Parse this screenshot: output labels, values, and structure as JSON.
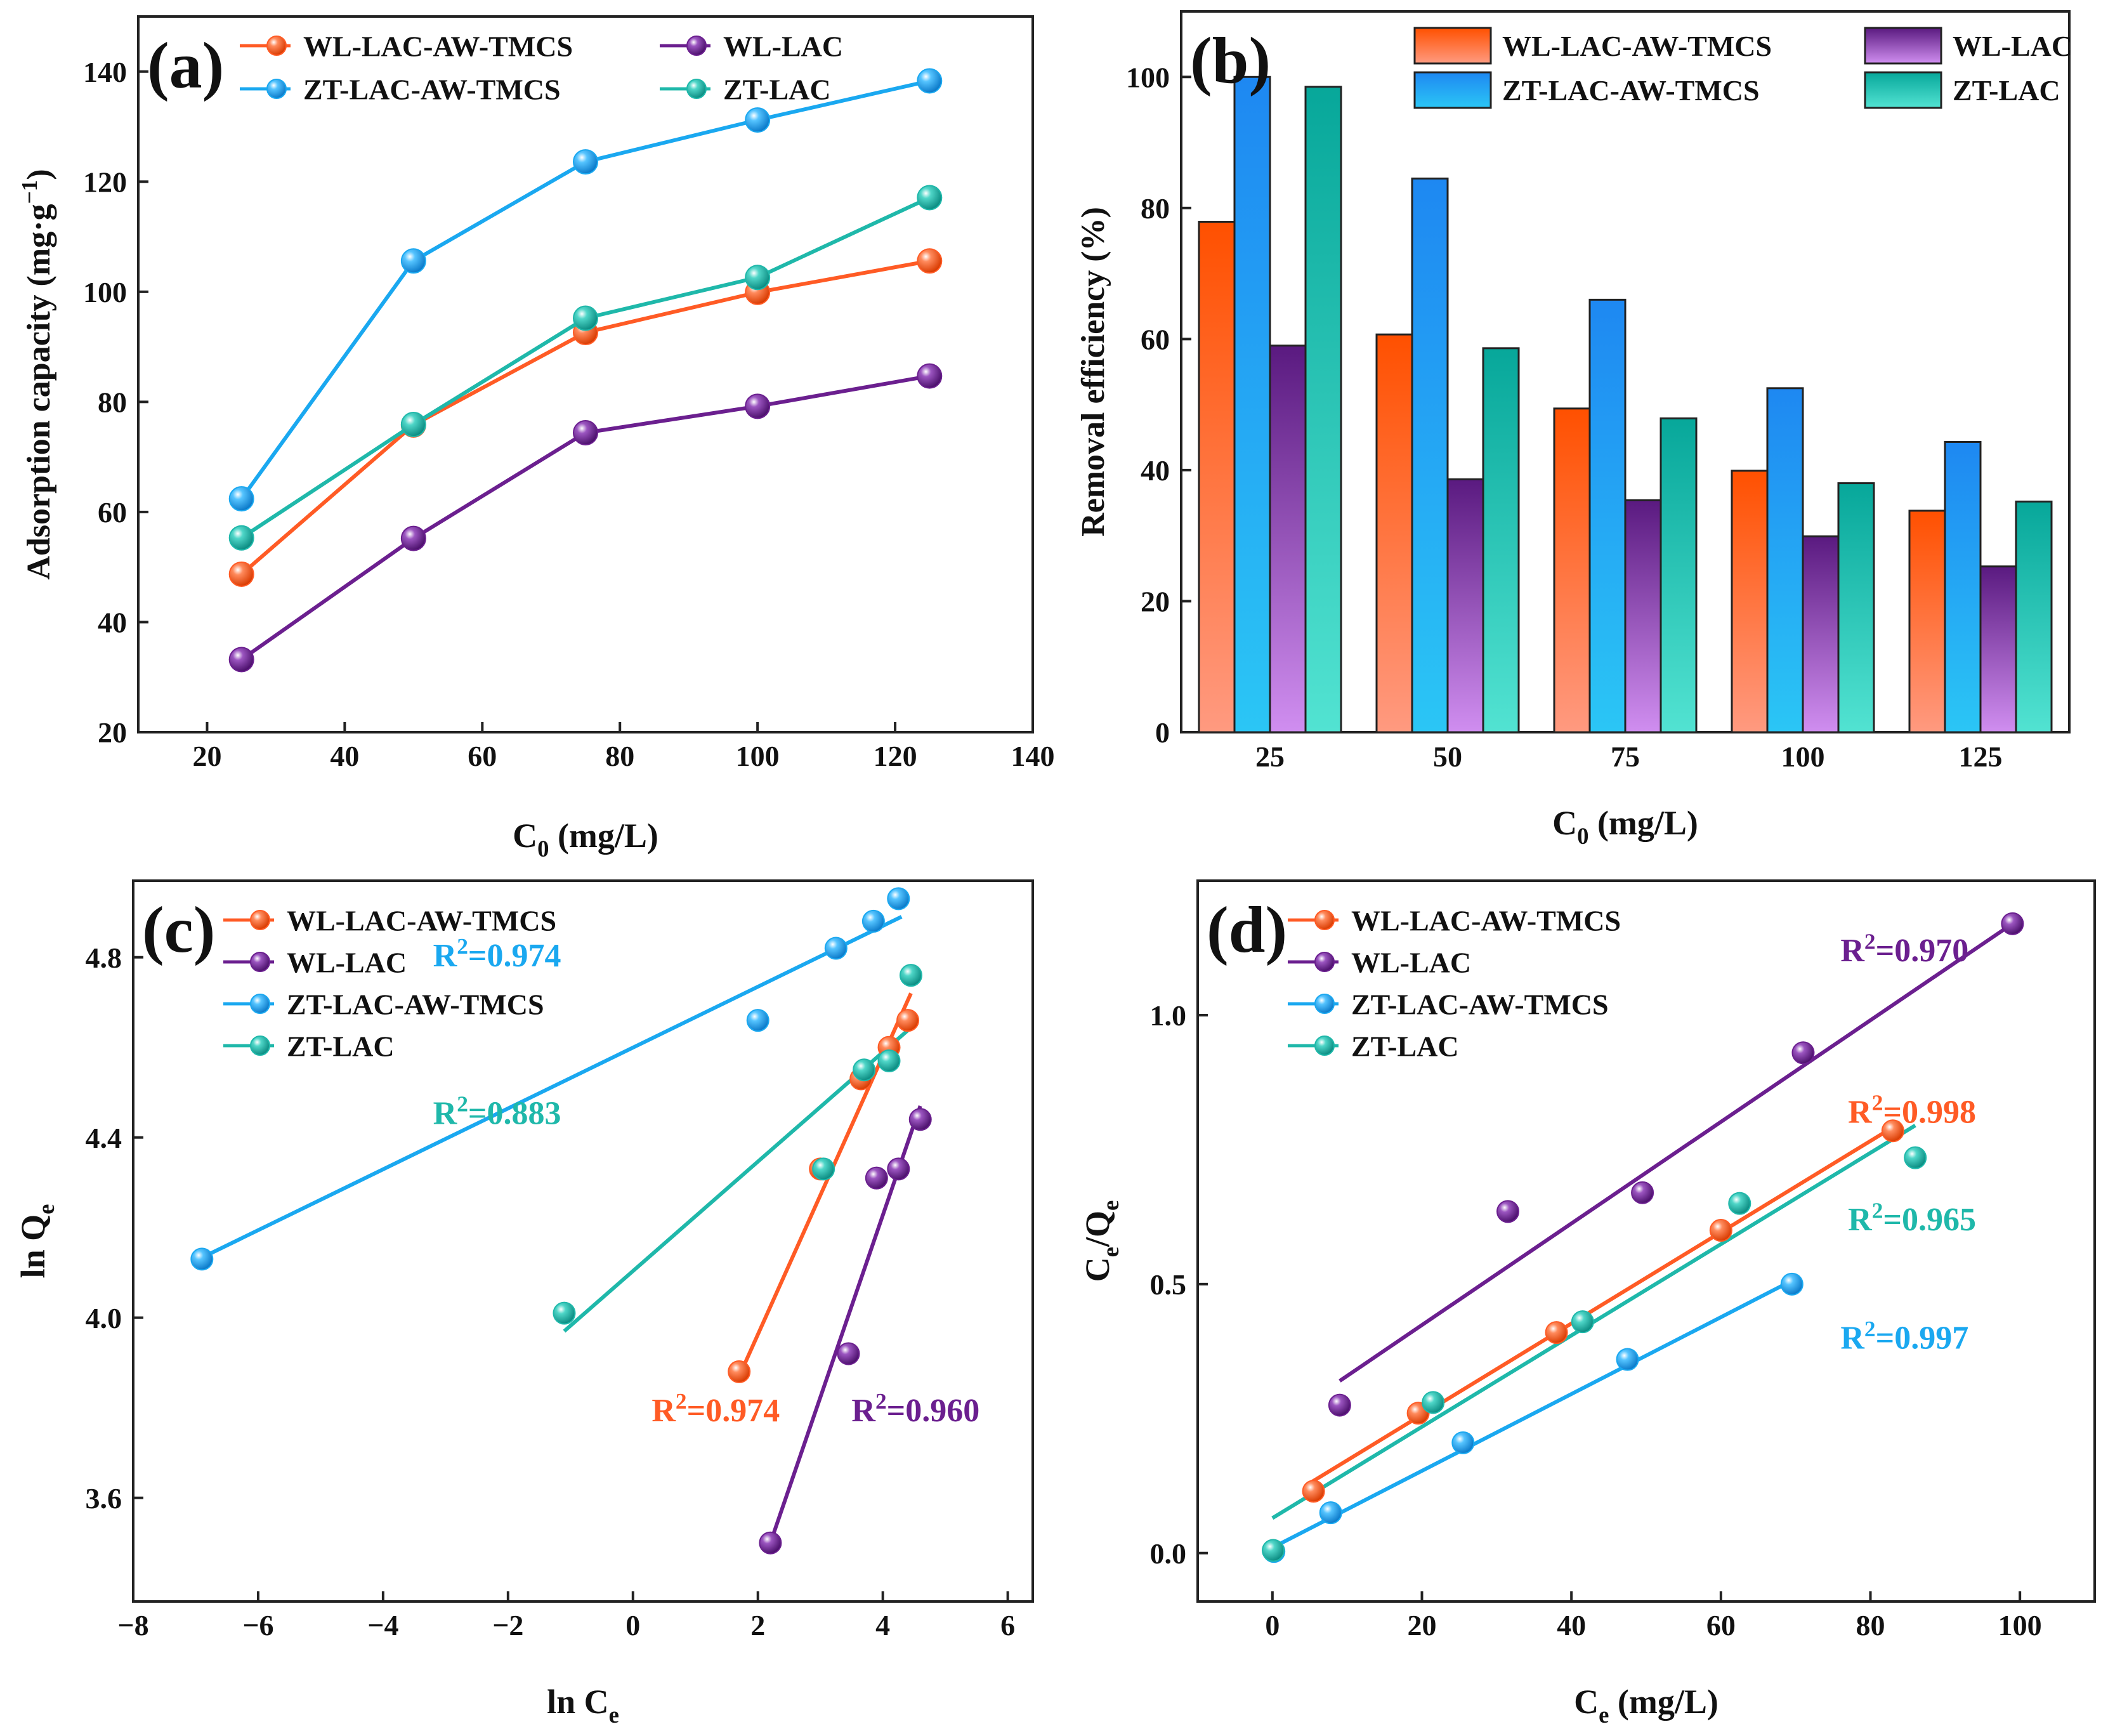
{
  "colors": {
    "wl_aw": "#ff5b25",
    "wl_lac": "#6b1f8f",
    "zt_aw": "#1aa8f0",
    "zt_lac": "#1fb8aa"
  },
  "chart_data": [
    {
      "id": "a",
      "type": "line",
      "panel_label": "(a)",
      "xlabel": "C",
      "xlabel_sub": "0",
      "xlabel_rest": " (mg/L)",
      "ylabel": "Adsorption capacity (mg·g",
      "ylabel_sup": "−1",
      "ylabel_end": ")",
      "xlim": [
        10,
        140
      ],
      "ylim": [
        20,
        150
      ],
      "xticks": [
        20,
        40,
        60,
        80,
        100,
        120,
        140
      ],
      "yticks": [
        20,
        40,
        60,
        80,
        100,
        120,
        140
      ],
      "x": [
        25,
        50,
        75,
        100,
        125
      ],
      "legend": [
        "WL-LAC-AW-TMCS",
        "WL-LAC",
        "ZT-LAC-AW-TMCS",
        "ZT-LAC"
      ],
      "series": [
        {
          "name": "WL-LAC-AW-TMCS",
          "color": "wl_aw",
          "values": [
            48.7,
            75.8,
            92.6,
            99.9,
            105.6
          ]
        },
        {
          "name": "WL-LAC",
          "color": "wl_lac",
          "values": [
            33.2,
            55.2,
            74.4,
            79.2,
            84.7
          ]
        },
        {
          "name": "ZT-LAC-AW-TMCS",
          "color": "zt_aw",
          "values": [
            62.4,
            105.6,
            123.6,
            131.2,
            138.3
          ]
        },
        {
          "name": "ZT-LAC",
          "color": "zt_lac",
          "values": [
            55.3,
            75.9,
            95.2,
            102.6,
            117.1
          ]
        }
      ]
    },
    {
      "id": "b",
      "type": "bar",
      "panel_label": "(b)",
      "xlabel": "C",
      "xlabel_sub": "0",
      "xlabel_rest": " (mg/L)",
      "ylabel": "Removal efficiency (%)",
      "ylim": [
        0,
        110
      ],
      "yticks": [
        0,
        20,
        40,
        60,
        80,
        100
      ],
      "categories": [
        "25",
        "50",
        "75",
        "100",
        "125"
      ],
      "legend": [
        "WL-LAC-AW-TMCS",
        "WL-LAC",
        "ZT-LAC-AW-TMCS",
        "ZT-LAC"
      ],
      "series": [
        {
          "name": "WL-LAC-AW-TMCS",
          "color": "wl_aw",
          "values": [
            77.9,
            60.7,
            49.4,
            39.9,
            33.8
          ]
        },
        {
          "name": "ZT-LAC-AW-TMCS",
          "color": "zt_aw",
          "values": [
            100.0,
            84.5,
            66.0,
            52.5,
            44.3
          ]
        },
        {
          "name": "WL-LAC",
          "color": "wl_lac",
          "values": [
            59.0,
            38.6,
            35.4,
            29.9,
            25.3
          ]
        },
        {
          "name": "ZT-LAC",
          "color": "zt_lac",
          "values": [
            98.5,
            58.6,
            47.9,
            38.0,
            35.2
          ]
        }
      ]
    },
    {
      "id": "c",
      "type": "scatter",
      "panel_label": "(c)",
      "xlabel": "ln C",
      "xlabel_sub": "e",
      "xlabel_rest": "",
      "ylabel": "ln Q",
      "ylabel_sub": "e",
      "xlim": [
        -8,
        6.4
      ],
      "ylim": [
        3.37,
        4.97
      ],
      "xticks": [
        -8,
        -6,
        -4,
        -2,
        0,
        2,
        4,
        6
      ],
      "xtick_labels": [
        "−8",
        "−6",
        "−4",
        "−2",
        "0",
        "2",
        "4",
        "6"
      ],
      "yticks": [
        3.6,
        4.0,
        4.4,
        4.8
      ],
      "ytick_labels": [
        "3.6",
        "4.0",
        "4.4",
        "4.8"
      ],
      "legend": [
        "WL-LAC-AW-TMCS",
        "WL-LAC",
        "ZT-LAC-AW-TMCS",
        "ZT-LAC"
      ],
      "series": [
        {
          "name": "WL-LAC-AW-TMCS",
          "color": "wl_aw",
          "points": [
            [
              1.7,
              3.88
            ],
            [
              3.0,
              4.33
            ],
            [
              3.65,
              4.53
            ],
            [
              4.1,
              4.6
            ],
            [
              4.4,
              4.66
            ]
          ],
          "fit": [
            [
              1.7,
              3.87
            ],
            [
              4.45,
              4.72
            ]
          ]
        },
        {
          "name": "WL-LAC",
          "color": "wl_lac",
          "points": [
            [
              2.2,
              3.5
            ],
            [
              3.45,
              3.92
            ],
            [
              3.9,
              4.31
            ],
            [
              4.25,
              4.33
            ],
            [
              4.6,
              4.44
            ]
          ],
          "fit": [
            [
              2.2,
              3.5
            ],
            [
              4.6,
              4.47
            ]
          ]
        },
        {
          "name": "ZT-LAC-AW-TMCS",
          "color": "zt_aw",
          "points": [
            [
              -6.9,
              4.13
            ],
            [
              2.0,
              4.66
            ],
            [
              3.25,
              4.82
            ],
            [
              3.85,
              4.88
            ],
            [
              4.25,
              4.93
            ]
          ],
          "fit": [
            [
              -6.95,
              4.13
            ],
            [
              4.3,
              4.89
            ]
          ]
        },
        {
          "name": "ZT-LAC",
          "color": "zt_lac",
          "points": [
            [
              -1.1,
              4.01
            ],
            [
              3.05,
              4.33
            ],
            [
              3.7,
              4.55
            ],
            [
              4.1,
              4.57
            ],
            [
              4.45,
              4.76
            ]
          ],
          "fit": [
            [
              -1.1,
              3.97
            ],
            [
              4.5,
              4.65
            ]
          ]
        }
      ],
      "annotations": [
        {
          "base": "R",
          "sup": "2",
          "rest": "=0.974",
          "color": "zt_aw",
          "x": -3.2,
          "y": 4.78
        },
        {
          "base": "R",
          "sup": "2",
          "rest": "=0.883",
          "color": "zt_lac",
          "x": -3.2,
          "y": 4.43
        },
        {
          "base": "R",
          "sup": "2",
          "rest": "=0.974",
          "color": "wl_aw",
          "x": 0.3,
          "y": 3.77
        },
        {
          "base": "R",
          "sup": "2",
          "rest": "=0.960",
          "color": "wl_lac",
          "x": 3.5,
          "y": 3.77
        }
      ]
    },
    {
      "id": "d",
      "type": "scatter",
      "panel_label": "(d)",
      "xlabel": "C",
      "xlabel_sub": "e",
      "xlabel_rest": " (mg/L)",
      "ylabel": "C",
      "ylabel_sub": "e",
      "ylabel_mid": "/Q",
      "ylabel_sub2": "e",
      "xlim": [
        -10,
        110
      ],
      "ylim": [
        -0.09,
        1.25
      ],
      "xticks": [
        0,
        20,
        40,
        60,
        80,
        100
      ],
      "xtick_labels": [
        "0",
        "20",
        "40",
        "60",
        "80",
        "100"
      ],
      "yticks": [
        0.0,
        0.5,
        1.0
      ],
      "ytick_labels": [
        "0.0",
        "0.5",
        "1.0"
      ],
      "legend": [
        "WL-LAC-AW-TMCS",
        "WL-LAC",
        "ZT-LAC-AW-TMCS",
        "ZT-LAC"
      ],
      "series": [
        {
          "name": "WL-LAC-AW-TMCS",
          "color": "wl_aw",
          "points": [
            [
              5.5,
              0.115
            ],
            [
              19.5,
              0.26
            ],
            [
              38,
              0.41
            ],
            [
              60,
              0.6
            ],
            [
              83,
              0.785
            ]
          ],
          "fit": [
            [
              5,
              0.13
            ],
            [
              84,
              0.8
            ]
          ]
        },
        {
          "name": "WL-LAC",
          "color": "wl_lac",
          "points": [
            [
              9,
              0.275
            ],
            [
              31.5,
              0.635
            ],
            [
              49.5,
              0.67
            ],
            [
              71,
              0.93
            ],
            [
              99,
              1.17
            ]
          ],
          "fit": [
            [
              9,
              0.32
            ],
            [
              99,
              1.17
            ]
          ]
        },
        {
          "name": "ZT-LAC-AW-TMCS",
          "color": "zt_aw",
          "points": [
            [
              0.2,
              0.003
            ],
            [
              7.8,
              0.075
            ],
            [
              25.5,
              0.205
            ],
            [
              47.5,
              0.36
            ],
            [
              69.5,
              0.5
            ]
          ],
          "fit": [
            [
              0,
              0.01
            ],
            [
              70,
              0.51
            ]
          ]
        },
        {
          "name": "ZT-LAC",
          "color": "zt_lac",
          "points": [
            [
              0.1,
              0.005
            ],
            [
              21.5,
              0.28
            ],
            [
              41.5,
              0.43
            ],
            [
              62.5,
              0.65
            ],
            [
              86,
              0.735
            ]
          ],
          "fit": [
            [
              0,
              0.065
            ],
            [
              86,
              0.795
            ]
          ]
        }
      ],
      "annotations": [
        {
          "base": "R",
          "sup": "2",
          "rest": "=0.970",
          "color": "wl_lac",
          "x": 76,
          "y": 1.1
        },
        {
          "base": "R",
          "sup": "2",
          "rest": "=0.998",
          "color": "wl_aw",
          "x": 77,
          "y": 0.8
        },
        {
          "base": "R",
          "sup": "2",
          "rest": "=0.965",
          "color": "zt_lac",
          "x": 77,
          "y": 0.6
        },
        {
          "base": "R",
          "sup": "2",
          "rest": "=0.997",
          "color": "zt_aw",
          "x": 76,
          "y": 0.38
        }
      ]
    }
  ]
}
